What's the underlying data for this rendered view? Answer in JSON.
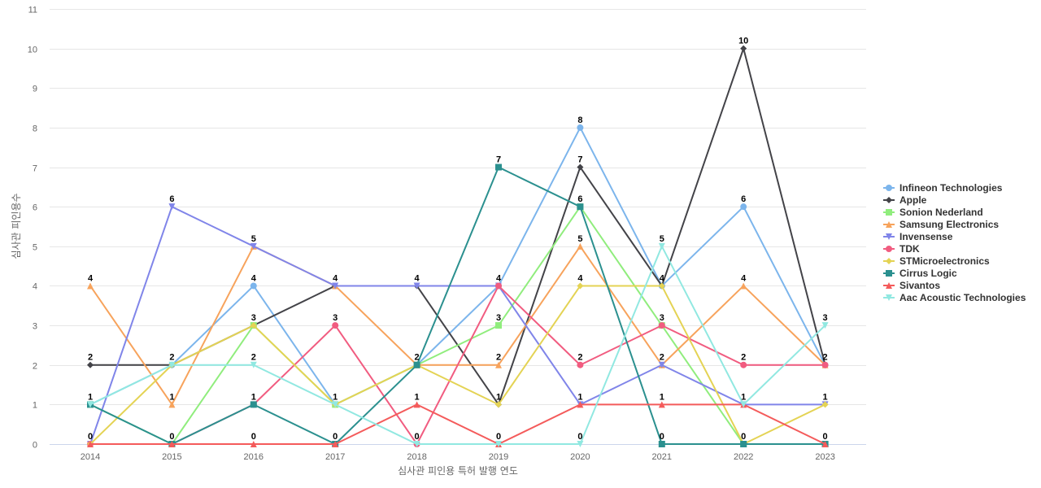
{
  "chart_data": {
    "type": "line",
    "xlabel": "심사관 피인용 특허 발행 연도",
    "ylabel": "심사관 피인용수",
    "categories": [
      "2014",
      "2015",
      "2016",
      "2017",
      "2018",
      "2019",
      "2020",
      "2021",
      "2022",
      "2023"
    ],
    "ylim": [
      0,
      11
    ],
    "yticks": [
      0,
      1,
      2,
      3,
      4,
      5,
      6,
      7,
      8,
      9,
      10,
      11
    ],
    "grid": true,
    "legend_position": "right",
    "series": [
      {
        "name": "Infineon Technologies",
        "color": "#7cb5ec",
        "marker": "circle",
        "values": [
          1,
          2,
          4,
          1,
          2,
          4,
          8,
          4,
          6,
          2
        ]
      },
      {
        "name": "Apple",
        "color": "#434348",
        "marker": "diamond",
        "values": [
          2,
          2,
          3,
          4,
          4,
          1,
          7,
          4,
          10,
          2
        ]
      },
      {
        "name": "Sonion Nederland",
        "color": "#90ed7d",
        "marker": "square",
        "values": [
          1,
          0,
          3,
          1,
          2,
          3,
          6,
          3,
          0,
          0
        ]
      },
      {
        "name": "Samsung Electronics",
        "color": "#f7a35c",
        "marker": "triangle",
        "values": [
          4,
          1,
          5,
          4,
          2,
          2,
          5,
          2,
          4,
          2
        ]
      },
      {
        "name": "Invensense",
        "color": "#8085e9",
        "marker": "triangle-down",
        "values": [
          0,
          6,
          5,
          4,
          4,
          4,
          1,
          2,
          1,
          1
        ]
      },
      {
        "name": "TDK",
        "color": "#f15c80",
        "marker": "circle",
        "values": [
          0,
          0,
          1,
          3,
          0,
          4,
          2,
          3,
          2,
          2
        ]
      },
      {
        "name": "STMicroelectronics",
        "color": "#e4d354",
        "marker": "diamond",
        "values": [
          0,
          2,
          3,
          1,
          2,
          1,
          4,
          4,
          0,
          1
        ]
      },
      {
        "name": "Cirrus Logic",
        "color": "#2b908f",
        "marker": "square",
        "values": [
          1,
          0,
          1,
          0,
          2,
          7,
          6,
          0,
          0,
          0
        ]
      },
      {
        "name": "Sivantos",
        "color": "#f45b5b",
        "marker": "triangle",
        "values": [
          0,
          0,
          0,
          0,
          1,
          0,
          1,
          1,
          1,
          0
        ]
      },
      {
        "name": "Aac Acoustic Technologies",
        "color": "#91e8e1",
        "marker": "triangle-down",
        "values": [
          1,
          2,
          2,
          1,
          0,
          0,
          0,
          5,
          1,
          3
        ]
      }
    ],
    "data_labels": [
      {
        "category": "2014",
        "value": 4
      },
      {
        "category": "2014",
        "value": 2
      },
      {
        "category": "2014",
        "value": 1
      },
      {
        "category": "2014",
        "value": 0
      },
      {
        "category": "2015",
        "value": 6
      },
      {
        "category": "2015",
        "value": 2
      },
      {
        "category": "2015",
        "value": 1
      },
      {
        "category": "2015",
        "value": 0
      },
      {
        "category": "2016",
        "value": 5
      },
      {
        "category": "2016",
        "value": 4
      },
      {
        "category": "2016",
        "value": 3
      },
      {
        "category": "2016",
        "value": 2
      },
      {
        "category": "2016",
        "value": 1
      },
      {
        "category": "2016",
        "value": 0
      },
      {
        "category": "2017",
        "value": 4
      },
      {
        "category": "2017",
        "value": 3
      },
      {
        "category": "2017",
        "value": 1
      },
      {
        "category": "2017",
        "value": 0
      },
      {
        "category": "2018",
        "value": 4
      },
      {
        "category": "2018",
        "value": 2
      },
      {
        "category": "2018",
        "value": 1
      },
      {
        "category": "2018",
        "value": 0
      },
      {
        "category": "2019",
        "value": 7
      },
      {
        "category": "2019",
        "value": 4
      },
      {
        "category": "2019",
        "value": 3
      },
      {
        "category": "2019",
        "value": 2
      },
      {
        "category": "2019",
        "value": 1
      },
      {
        "category": "2019",
        "value": 0
      },
      {
        "category": "2020",
        "value": 8
      },
      {
        "category": "2020",
        "value": 7
      },
      {
        "category": "2020",
        "value": 6
      },
      {
        "category": "2020",
        "value": 5
      },
      {
        "category": "2020",
        "value": 4
      },
      {
        "category": "2020",
        "value": 2
      },
      {
        "category": "2020",
        "value": 1
      },
      {
        "category": "2020",
        "value": 0
      },
      {
        "category": "2021",
        "value": 5
      },
      {
        "category": "2021",
        "value": 4
      },
      {
        "category": "2021",
        "value": 3
      },
      {
        "category": "2021",
        "value": 2
      },
      {
        "category": "2021",
        "value": 1
      },
      {
        "category": "2021",
        "value": 0
      },
      {
        "category": "2022",
        "value": 10
      },
      {
        "category": "2022",
        "value": 6
      },
      {
        "category": "2022",
        "value": 4
      },
      {
        "category": "2022",
        "value": 2
      },
      {
        "category": "2022",
        "value": 1
      },
      {
        "category": "2022",
        "value": 0
      },
      {
        "category": "2023",
        "value": 3
      },
      {
        "category": "2023",
        "value": 2
      },
      {
        "category": "2023",
        "value": 1
      },
      {
        "category": "2023",
        "value": 0
      }
    ]
  }
}
